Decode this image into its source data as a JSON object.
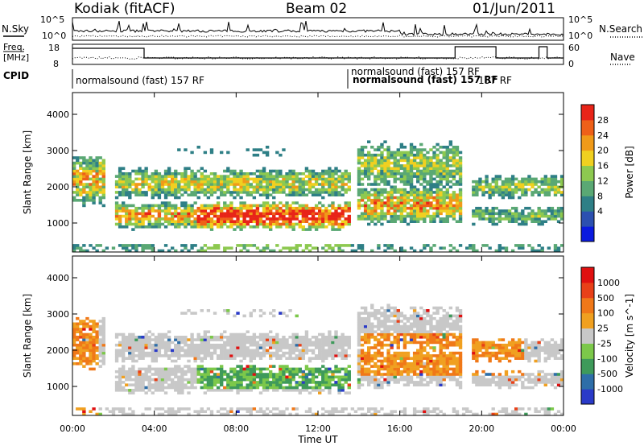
{
  "header": {
    "station": "Kodiak (fitACF)",
    "beam": "Beam 02",
    "date": "01/Jun/2011"
  },
  "top_panels": {
    "nsky_label": "N.Sky",
    "nsearch_label": "N.Search",
    "count_ticks": [
      "10^5",
      "10^0"
    ],
    "freq_label_1": "Freq.",
    "freq_label_2": "[MHz]",
    "freq_ticks": [
      "18",
      "8"
    ],
    "nave_label": "Nave",
    "nave_ticks": [
      "60",
      "0"
    ],
    "cpid_label": "CPID",
    "cpid_main": "normalsound (fast) 157 RF",
    "cpid_mid": "normalsound (fast) 157 RF",
    "cpid_tail": "157 RF"
  },
  "chart_data": [
    {
      "type": "heatmap",
      "name": "Power",
      "ylabel": "Slant Range [km]",
      "yticks": [
        1000,
        2000,
        3000,
        4000
      ],
      "ylim": [
        200,
        4600
      ],
      "xlim_hours": [
        0,
        24
      ],
      "colorbar_label": "Power [dB]",
      "colorbar_ticks": [
        "28",
        "24",
        "20",
        "16",
        "12",
        "8",
        "4"
      ],
      "colors": [
        "#0a1adf",
        "#2c50b0",
        "#2e7f86",
        "#5aa874",
        "#8dc950",
        "#f0d020",
        "#f09a18",
        "#ee6018",
        "#e82418"
      ]
    },
    {
      "type": "heatmap",
      "name": "Velocity",
      "ylabel": "Slant Range [km]",
      "yticks": [
        1000,
        2000,
        3000,
        4000
      ],
      "ylim": [
        200,
        4600
      ],
      "xlim_hours": [
        0,
        24
      ],
      "xlabel": "Time UT",
      "xticks": [
        "00:00",
        "04:00",
        "08:00",
        "12:00",
        "16:00",
        "20:00",
        "00:00"
      ],
      "colorbar_label": "Velocity [m s^-1]",
      "colorbar_ticks": [
        "1000",
        "500",
        "100",
        "25",
        "-25",
        "-100",
        "-500",
        "-1000"
      ],
      "colors": [
        "#2a3ac8",
        "#2e6ea8",
        "#3e9a5a",
        "#7cc84a",
        "#c8c8c8",
        "#f0a020",
        "#f07818",
        "#e84018",
        "#e01010"
      ]
    }
  ]
}
